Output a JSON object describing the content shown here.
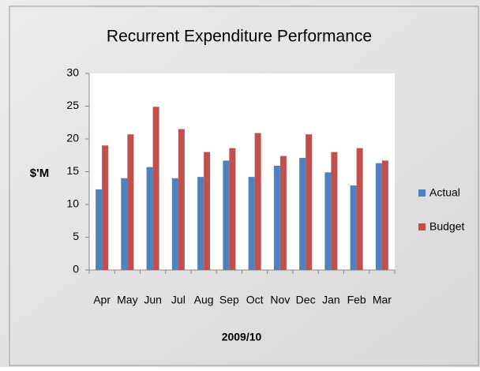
{
  "chart_data": {
    "type": "bar",
    "title": "Recurrent Expenditure Performance",
    "x_label": "2009/10",
    "y_label": "$'M",
    "categories": [
      "Apr",
      "May",
      "Jun",
      "Jul",
      "Aug",
      "Sep",
      "Oct",
      "Nov",
      "Dec",
      "Jan",
      "Feb",
      "Mar"
    ],
    "series": [
      {
        "name": "Actual",
        "color": "#4f81bd",
        "values": [
          12.3,
          14.0,
          15.7,
          14.0,
          14.2,
          16.7,
          14.2,
          15.9,
          17.1,
          14.9,
          12.9,
          16.3
        ]
      },
      {
        "name": "Budget",
        "color": "#c0504d",
        "values": [
          19.0,
          20.7,
          24.9,
          21.5,
          18.0,
          18.6,
          20.9,
          17.4,
          20.7,
          18.0,
          18.6,
          16.7
        ]
      }
    ],
    "ylim": [
      0,
      30
    ],
    "yticks": [
      0,
      5,
      10,
      15,
      20,
      25,
      30
    ],
    "legend": "right"
  }
}
